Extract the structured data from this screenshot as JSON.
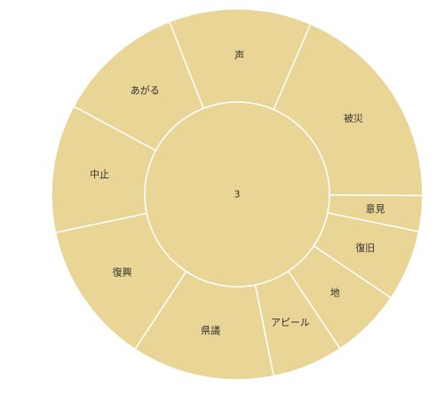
{
  "chart_data": {
    "type": "sunburst",
    "title": "",
    "root": {
      "label": "3",
      "value": 20
    },
    "children": [
      {
        "label": "声",
        "value": 2
      },
      {
        "label": "被災",
        "value": 3
      },
      {
        "label": "意見",
        "value": 0.5
      },
      {
        "label": "復旧",
        "value": 1
      },
      {
        "label": "地",
        "value": 1
      },
      {
        "label": "アピール",
        "value": 1
      },
      {
        "label": "県議",
        "value": 2
      },
      {
        "label": "復興",
        "value": 2
      },
      {
        "label": "中止",
        "value": 1.8
      },
      {
        "label": "あがる",
        "value": 1.8
      }
    ],
    "colors": {
      "segment": "#e9d595",
      "border": "#ffffff",
      "text": "#333333"
    }
  }
}
